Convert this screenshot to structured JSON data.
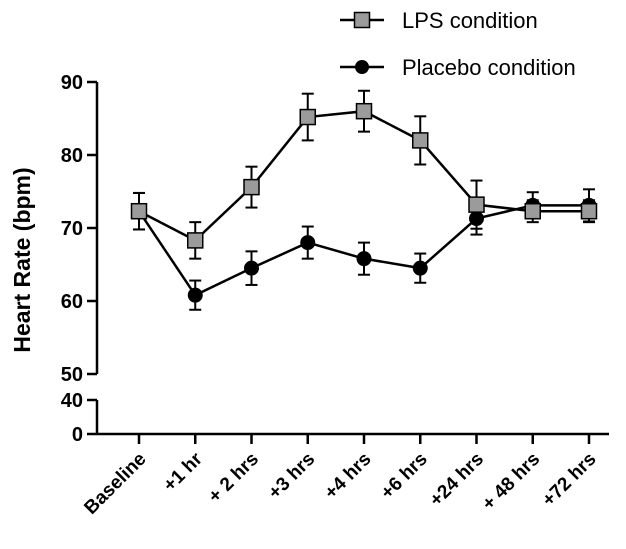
{
  "chart_data": {
    "type": "line",
    "ylabel": "Heart Rate (bpm)",
    "categories": [
      "Baseline",
      "+1 hr",
      "+ 2 hrs",
      "+3 hrs",
      "+4 hrs",
      "+6 hrs",
      "+24 hrs",
      "+ 48 hrs",
      "+72 hrs"
    ],
    "yaxis": {
      "lower_segment": {
        "range": [
          0,
          40
        ],
        "ticks": [
          0,
          40
        ]
      },
      "upper_segment": {
        "range": [
          50,
          90
        ],
        "ticks": [
          50,
          60,
          70,
          80,
          90
        ]
      },
      "broken": true
    },
    "series": [
      {
        "name": "LPS condition",
        "marker": "square",
        "color": "#9b9b9b",
        "values": [
          72.3,
          68.3,
          75.6,
          85.2,
          86.0,
          82.0,
          73.2,
          72.3,
          72.3
        ],
        "error": [
          2.5,
          2.5,
          2.8,
          3.2,
          2.8,
          3.3,
          3.3,
          1.5,
          1.5
        ]
      },
      {
        "name": "Placebo condition",
        "marker": "circle",
        "color": "#000000",
        "values": [
          72.3,
          60.8,
          64.5,
          68.0,
          65.8,
          64.5,
          71.3,
          73.1,
          73.1
        ],
        "error": [
          2.5,
          2.0,
          2.3,
          2.2,
          2.2,
          2.0,
          2.2,
          1.8,
          2.2
        ]
      }
    ],
    "legend_position": "top-right",
    "grid": false
  }
}
